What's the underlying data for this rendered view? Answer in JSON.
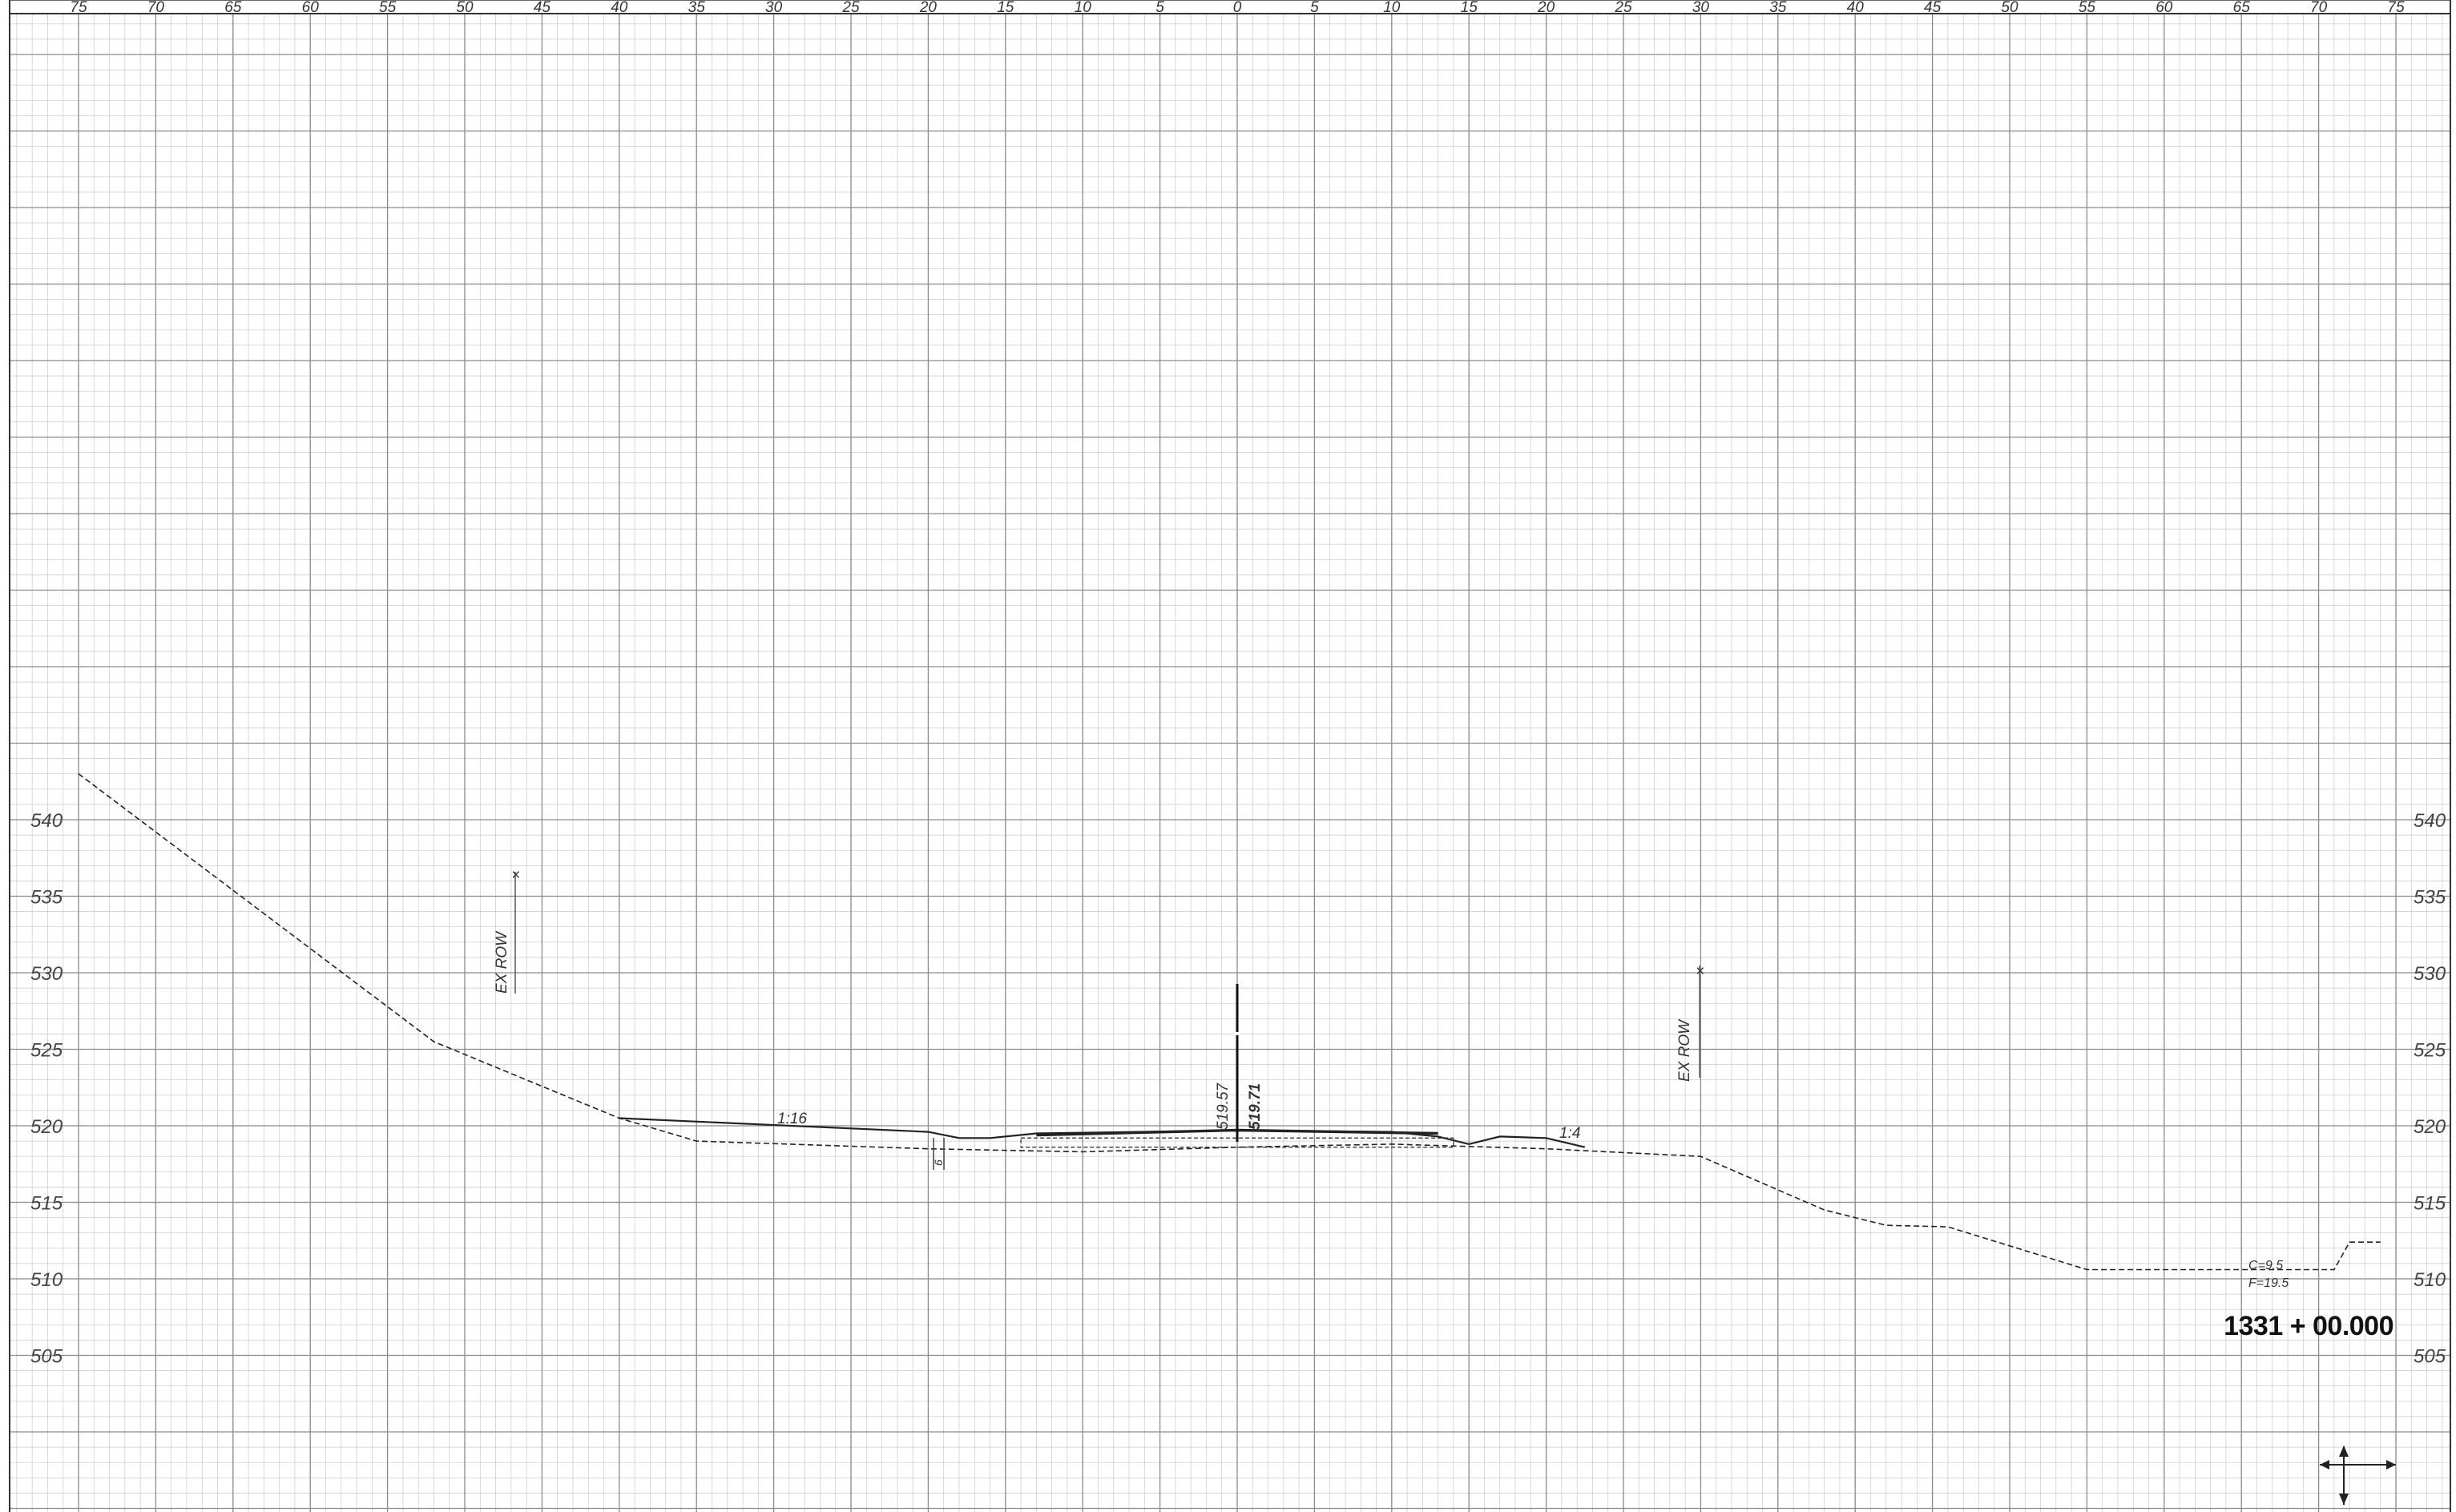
{
  "sheet": {
    "station": "1331 + 00.000",
    "offset_ticks": [
      "75",
      "70",
      "65",
      "60",
      "55",
      "50",
      "45",
      "40",
      "35",
      "30",
      "25",
      "20",
      "15",
      "10",
      "5",
      "0",
      "5",
      "10",
      "15",
      "20",
      "25",
      "30",
      "35",
      "40",
      "45",
      "50",
      "55",
      "60",
      "65",
      "70",
      "75"
    ],
    "elevation_ticks_left": [
      "540",
      "535",
      "530",
      "525",
      "520",
      "515",
      "510",
      "505"
    ],
    "elevation_ticks_right": [
      "540",
      "535",
      "530",
      "525",
      "520",
      "515",
      "510",
      "505"
    ],
    "annotations": {
      "left_row": "EX ROW",
      "right_row": "EX ROW",
      "left_slope": "1:16",
      "right_slope": "1:4",
      "left_ditch": "6",
      "elev_1": "519.57",
      "elev_2": "519.71",
      "cut": "C=9.5",
      "fill": "F=19.5"
    },
    "colors": {
      "grid_minor": "#c8c8c8",
      "grid_major": "#8a8a8a",
      "line": "#222222"
    }
  },
  "chart_data": {
    "type": "line",
    "x_unit": "offset (ft)",
    "y_unit": "elevation (ft)",
    "xlim": [
      -80,
      80
    ],
    "ylim": [
      500,
      550
    ],
    "series": [
      {
        "style": "dashed",
        "points": [
          [
            -75,
            543
          ],
          [
            -52,
            525.5
          ],
          [
            -40,
            520.5
          ],
          [
            -35,
            519
          ],
          [
            -20,
            518.5
          ],
          [
            -10,
            518.3
          ],
          [
            0,
            518.6
          ],
          [
            10,
            518.8
          ],
          [
            20,
            518.5
          ],
          [
            30,
            518
          ],
          [
            38,
            514.5
          ],
          [
            42,
            513.5
          ],
          [
            46,
            513.4
          ],
          [
            55,
            510.6
          ],
          [
            65,
            510.6
          ],
          [
            71,
            510.6
          ],
          [
            72,
            512.4
          ],
          [
            74,
            512.4
          ]
        ]
      },
      {
        "style": "solid",
        "points": [
          [
            -40,
            520.5
          ],
          [
            -20,
            519.6
          ],
          [
            -18,
            519.2
          ],
          [
            -16,
            519.2
          ],
          [
            -13,
            519.5
          ],
          [
            0,
            519.7
          ],
          [
            10,
            519.6
          ],
          [
            13,
            519.3
          ],
          [
            15,
            518.8
          ],
          [
            17,
            519.3
          ],
          [
            20,
            519.2
          ],
          [
            22.5,
            518.6
          ]
        ]
      },
      {
        "style": "solid",
        "points": [
          [
            -13,
            519.4
          ],
          [
            0,
            519.71
          ],
          [
            13,
            519.5
          ]
        ]
      }
    ]
  }
}
